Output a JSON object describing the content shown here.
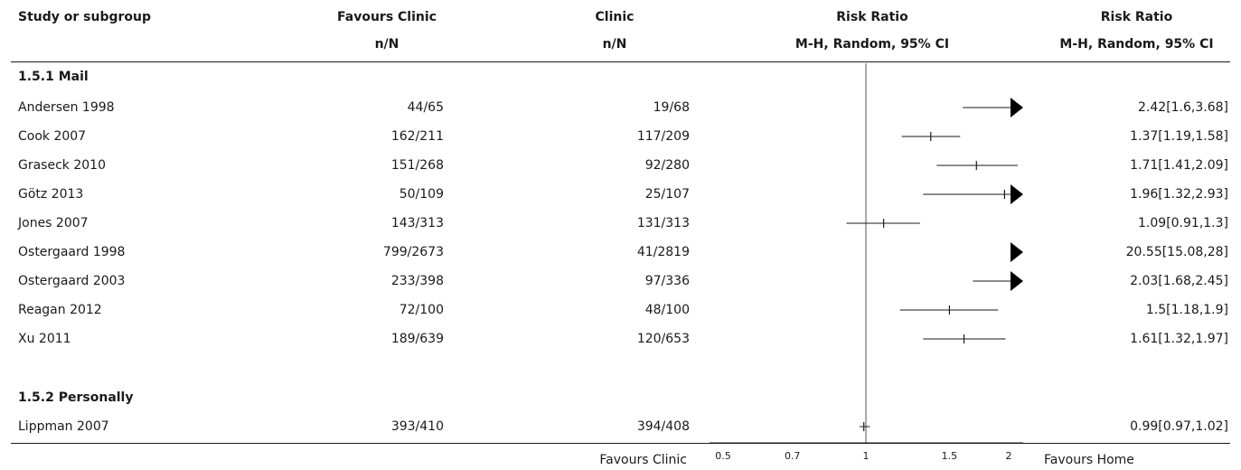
{
  "headers": {
    "study": "Study or subgroup",
    "favours_clinic": "Favours Clinic",
    "clinic": "Clinic",
    "risk_ratio_plot": "Risk Ratio",
    "risk_ratio_value": "Risk Ratio",
    "nN_fc": "n/N",
    "nN_cl": "n/N",
    "method_plot": "M-H, Random, 95% CI",
    "method_value": "M-H, Random, 95% CI"
  },
  "groups": [
    {
      "label": "1.5.1 Mail"
    },
    {
      "label": "1.5.2 Personally"
    }
  ],
  "footer": {
    "left_label": "Favours Clinic",
    "right_label": "Favours Home"
  },
  "chart_data": {
    "type": "forest",
    "scale": "log",
    "xlim": [
      0.5,
      2
    ],
    "x_ticks": [
      "0.5",
      "0.7",
      "1",
      "1.5",
      "2"
    ],
    "reference_line": 1,
    "studies": [
      {
        "group": 0,
        "name": "Andersen 1998",
        "fc": "44/65",
        "cl": "19/68",
        "rr": 2.42,
        "lo": 1.6,
        "hi": 3.68,
        "text": "2.42[1.6,3.68]"
      },
      {
        "group": 0,
        "name": "Cook 2007",
        "fc": "162/211",
        "cl": "117/209",
        "rr": 1.37,
        "lo": 1.19,
        "hi": 1.58,
        "text": "1.37[1.19,1.58]"
      },
      {
        "group": 0,
        "name": "Graseck 2010",
        "fc": "151/268",
        "cl": "92/280",
        "rr": 1.71,
        "lo": 1.41,
        "hi": 2.09,
        "text": "1.71[1.41,2.09]"
      },
      {
        "group": 0,
        "name": "Götz 2013",
        "fc": "50/109",
        "cl": "25/107",
        "rr": 1.96,
        "lo": 1.32,
        "hi": 2.93,
        "text": "1.96[1.32,2.93]"
      },
      {
        "group": 0,
        "name": "Jones 2007",
        "fc": "143/313",
        "cl": "131/313",
        "rr": 1.09,
        "lo": 0.91,
        "hi": 1.3,
        "text": "1.09[0.91,1.3]"
      },
      {
        "group": 0,
        "name": "Ostergaard 1998",
        "fc": "799/2673",
        "cl": "41/2819",
        "rr": 20.55,
        "lo": 15.08,
        "hi": 28,
        "text": "20.55[15.08,28]"
      },
      {
        "group": 0,
        "name": "Ostergaard 2003",
        "fc": "233/398",
        "cl": "97/336",
        "rr": 2.03,
        "lo": 1.68,
        "hi": 2.45,
        "text": "2.03[1.68,2.45]"
      },
      {
        "group": 0,
        "name": "Reagan 2012",
        "fc": "72/100",
        "cl": "48/100",
        "rr": 1.5,
        "lo": 1.18,
        "hi": 1.9,
        "text": "1.5[1.18,1.9]"
      },
      {
        "group": 0,
        "name": "Xu 2011",
        "fc": "189/639",
        "cl": "120/653",
        "rr": 1.61,
        "lo": 1.32,
        "hi": 1.97,
        "text": "1.61[1.32,1.97]"
      },
      {
        "group": 1,
        "name": "Lippman 2007",
        "fc": "393/410",
        "cl": "394/408",
        "rr": 0.99,
        "lo": 0.97,
        "hi": 1.02,
        "text": "0.99[0.97,1.02]"
      }
    ]
  }
}
